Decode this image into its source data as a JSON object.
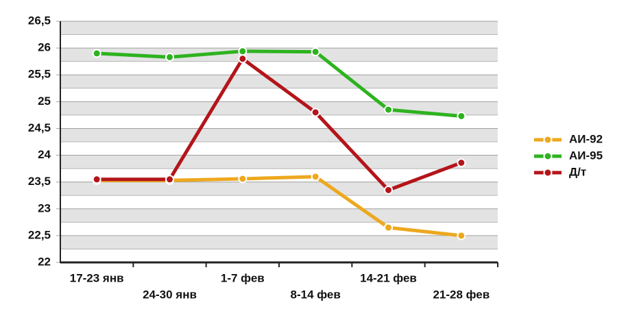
{
  "chart_data": {
    "type": "line",
    "categories": [
      "17-23 янв",
      "24-30 янв",
      "1-7 фев",
      "8-14 фев",
      "14-21 фев",
      "21-28 фев"
    ],
    "series": [
      {
        "name": "АИ-92",
        "color": "#eda81e",
        "values": [
          23.53,
          23.53,
          23.56,
          23.6,
          22.65,
          22.5
        ]
      },
      {
        "name": "АИ-95",
        "color": "#2db31f",
        "values": [
          25.9,
          25.83,
          25.94,
          25.93,
          24.85,
          24.73
        ]
      },
      {
        "name": "Д/т",
        "color": "#b3151a",
        "values": [
          23.55,
          23.55,
          25.8,
          24.8,
          23.35,
          23.86
        ]
      }
    ],
    "ylim": [
      22,
      26.5
    ],
    "yticks": [
      22,
      {
        "value": 22.5,
        "label": "22,5"
      },
      23,
      {
        "value": 23.5,
        "label": "23,5"
      },
      24,
      {
        "value": 24.5,
        "label": "24,5"
      },
      25,
      {
        "value": 25.5,
        "label": "25,5"
      },
      26,
      {
        "value": 26.5,
        "label": "26,5"
      }
    ],
    "grid": true
  }
}
